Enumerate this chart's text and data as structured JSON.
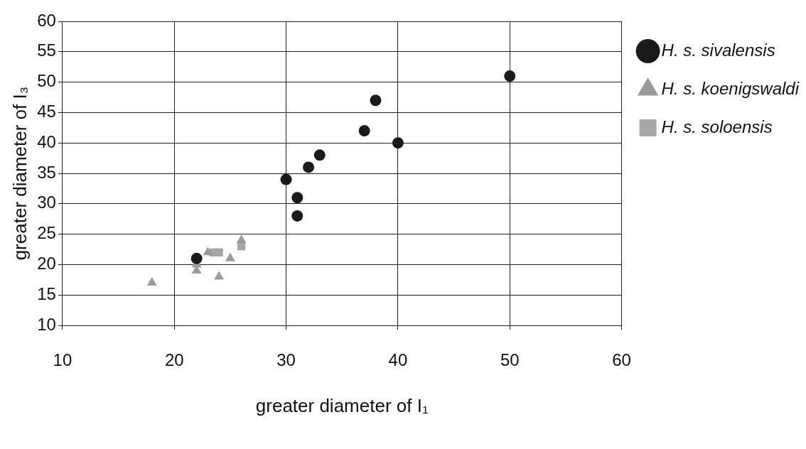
{
  "chart_data": {
    "type": "scatter",
    "xlabel": "greater diameter of I₁",
    "ylabel": "greater diameter of I₃",
    "xlim": [
      10,
      60
    ],
    "xticks": [
      10,
      20,
      30,
      40,
      50,
      60
    ],
    "ylim": [
      10,
      60
    ],
    "yticks": [
      10,
      15,
      20,
      25,
      30,
      35,
      40,
      45,
      50,
      55,
      60
    ],
    "grid": true,
    "legend": "right",
    "series": [
      {
        "name": "H. s. sivalensis",
        "color": "#1a1a1a",
        "marker": "circle",
        "x": [
          22,
          30,
          31,
          31,
          32,
          33,
          37,
          38,
          40,
          50
        ],
        "values": [
          21,
          34,
          31,
          28,
          36,
          38,
          42,
          47,
          40,
          51
        ]
      },
      {
        "name": "H. s. koenigswaldi",
        "color": "#9a9a9a",
        "marker": "triangle",
        "x": [
          18,
          22,
          22,
          23,
          24,
          25,
          26
        ],
        "values": [
          17,
          19,
          20,
          22,
          18,
          21,
          24
        ]
      },
      {
        "name": "H. s. soloensis",
        "color": "#a6a6a6",
        "marker": "square",
        "x": [
          23.5,
          24,
          26
        ],
        "values": [
          22,
          22,
          23
        ]
      }
    ]
  }
}
